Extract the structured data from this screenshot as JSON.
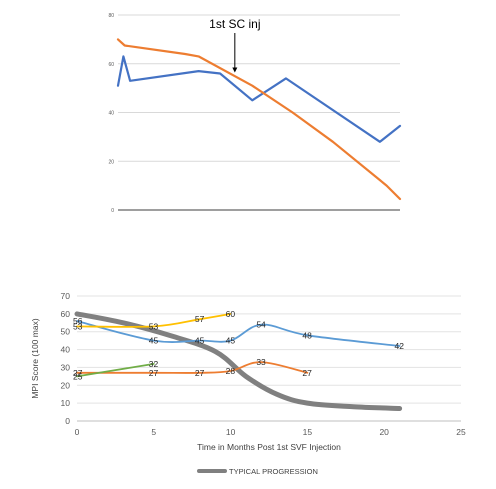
{
  "chart_data": [
    {
      "type": "line",
      "title": "",
      "xlabel": "",
      "ylabel": "",
      "xlim": [
        0,
        21
      ],
      "ylim": [
        0,
        80
      ],
      "yticks": [
        0,
        20,
        40,
        60,
        80
      ],
      "grid": true,
      "annotation": {
        "text": "1st SC inj",
        "x": 8.7,
        "y": 56
      },
      "series": [
        {
          "color": "#4472c4",
          "x": [
            0,
            0.4,
            0.9,
            6,
            7.6,
            10,
            12.5,
            19.5,
            21
          ],
          "y": [
            51,
            63,
            53,
            57,
            56,
            45,
            54,
            28,
            34.5
          ]
        },
        {
          "color": "#ed7d31",
          "x": [
            0,
            0.5,
            5,
            6,
            10,
            13,
            16,
            20,
            21
          ],
          "y": [
            70,
            67.5,
            64,
            63,
            51,
            40,
            28,
            10,
            4.5
          ]
        }
      ]
    },
    {
      "type": "line",
      "title": "",
      "xlabel": "Time in Months Post 1st SVF Injection",
      "ylabel": "MPI Score (100 max)",
      "xlim": [
        0,
        25
      ],
      "ylim": [
        0,
        70
      ],
      "xticks": [
        0,
        5,
        10,
        15,
        20,
        25
      ],
      "yticks": [
        0,
        10,
        20,
        30,
        40,
        50,
        60,
        70
      ],
      "grid": true,
      "legend": {
        "position": "bottom",
        "label": "TYPICAL PROGRESSION"
      },
      "series": [
        {
          "color": "#5b9bd5",
          "x": [
            0,
            5,
            8,
            10,
            12,
            15,
            21
          ],
          "y": [
            56,
            45,
            45,
            45,
            54,
            48,
            42
          ],
          "labels": [
            "56",
            "45",
            "45",
            "45",
            "54",
            "48",
            "42"
          ]
        },
        {
          "color": "#ffc000",
          "x": [
            0,
            5,
            8,
            10
          ],
          "y": [
            53,
            53,
            57,
            60
          ],
          "labels": [
            "53",
            "53",
            "57",
            "60"
          ]
        },
        {
          "color": "#ed7d31",
          "x": [
            0,
            5,
            8,
            10,
            12,
            15
          ],
          "y": [
            27,
            27,
            27,
            28,
            33,
            27
          ],
          "labels": [
            "27",
            "27",
            "27",
            "28",
            "33",
            "27"
          ]
        },
        {
          "color": "#70ad47",
          "x": [
            0,
            5
          ],
          "y": [
            25,
            32
          ],
          "labels": [
            "25",
            "32"
          ]
        },
        {
          "name": "TYPICAL PROGRESSION",
          "color": "#808080",
          "x": [
            0,
            3,
            6,
            9,
            11,
            13,
            15,
            18,
            21
          ],
          "y": [
            60,
            55,
            48,
            39,
            25,
            15,
            10,
            8,
            7
          ]
        }
      ]
    }
  ]
}
